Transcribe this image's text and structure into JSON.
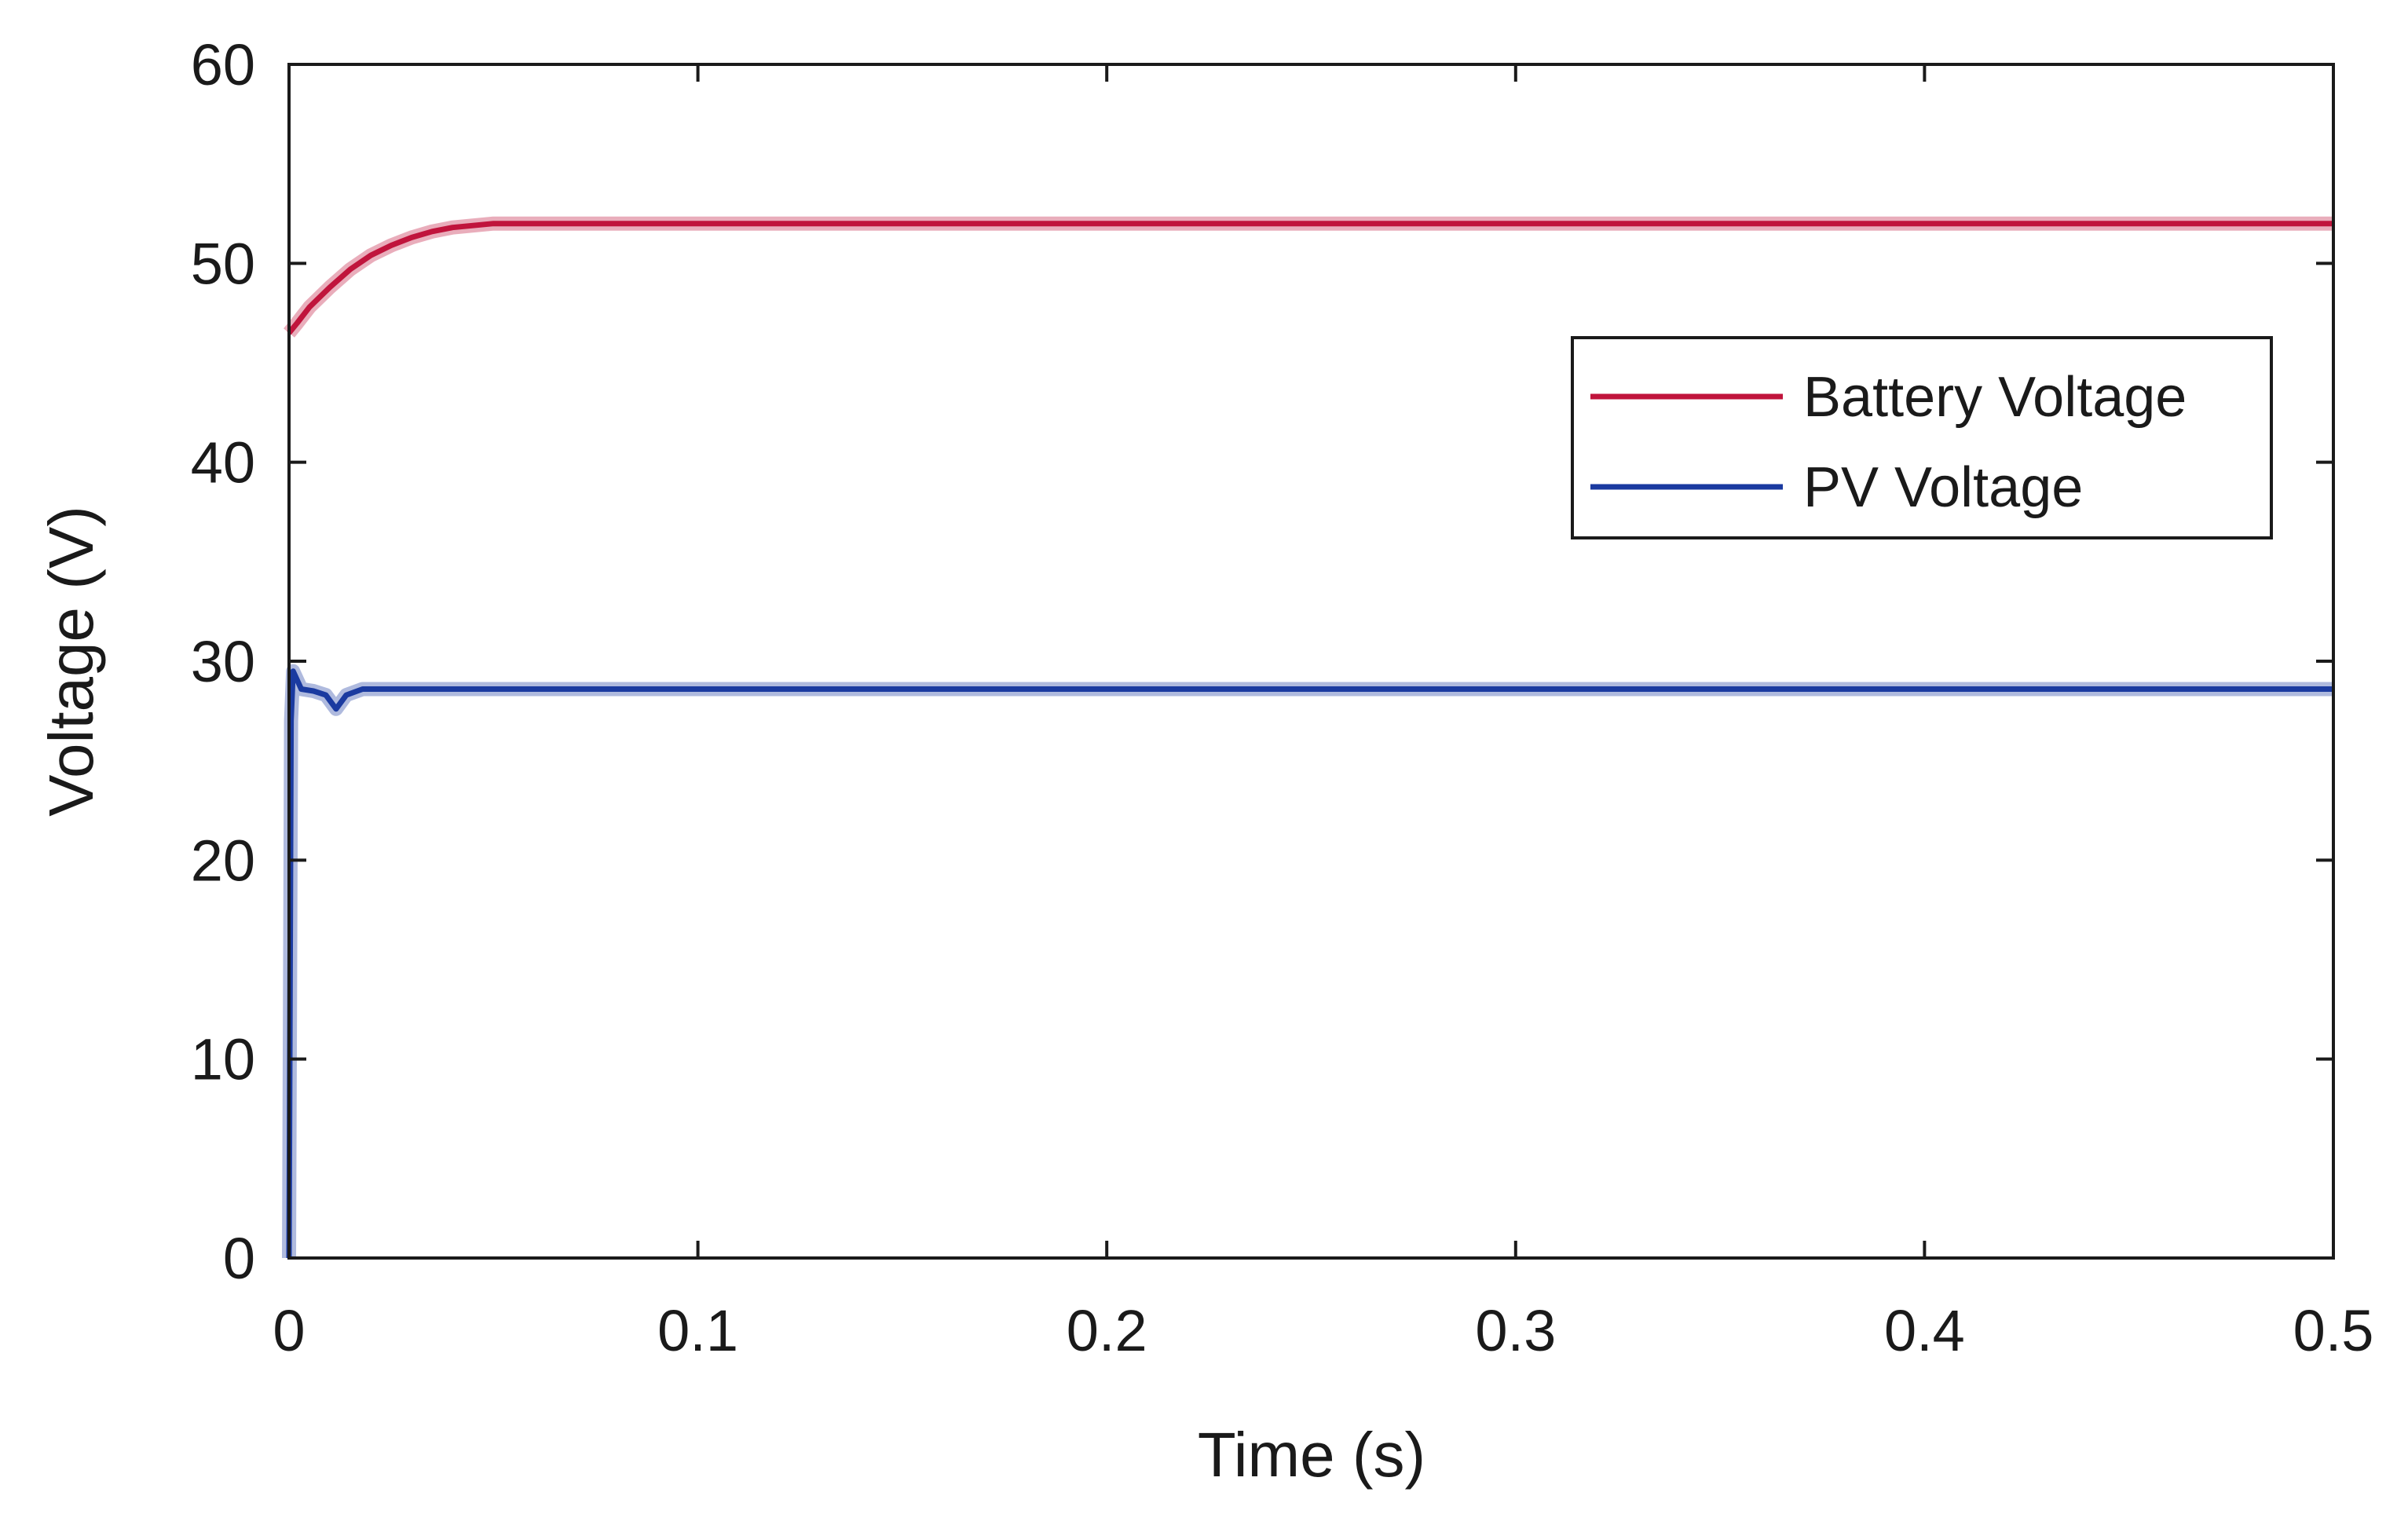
{
  "chart_data": {
    "type": "line",
    "title": "",
    "xlabel": "Time (s)",
    "ylabel": "Voltage (V)",
    "xlim": [
      0,
      0.5
    ],
    "ylim": [
      0,
      60
    ],
    "xticks": [
      0,
      0.1,
      0.2,
      0.3,
      0.4,
      0.5
    ],
    "xtick_labels": [
      "0",
      "0.1",
      "0.2",
      "0.3",
      "0.4",
      "0.5"
    ],
    "yticks": [
      0,
      10,
      20,
      30,
      40,
      50,
      60
    ],
    "ytick_labels": [
      "0",
      "10",
      "20",
      "30",
      "40",
      "50",
      "60"
    ],
    "grid": false,
    "legend_position": "top-right",
    "series": [
      {
        "name": "Battery Voltage",
        "color": "#c0143c",
        "x": [
          0,
          0.002,
          0.005,
          0.01,
          0.015,
          0.02,
          0.025,
          0.03,
          0.035,
          0.04,
          0.045,
          0.05,
          0.1,
          0.2,
          0.3,
          0.4,
          0.5
        ],
        "y": [
          46.5,
          47,
          47.8,
          48.8,
          49.7,
          50.4,
          50.9,
          51.3,
          51.6,
          51.8,
          51.9,
          52,
          52,
          52,
          52,
          52,
          52
        ]
      },
      {
        "name": "PV Voltage",
        "color": "#1a3aa0",
        "x": [
          0,
          0.0005,
          0.001,
          0.003,
          0.006,
          0.009,
          0.0115,
          0.014,
          0.018,
          0.03,
          0.1,
          0.2,
          0.3,
          0.4,
          0.5
        ],
        "y": [
          0,
          27,
          29.5,
          28.6,
          28.5,
          28.3,
          27.6,
          28.3,
          28.6,
          28.6,
          28.6,
          28.6,
          28.6,
          28.6,
          28.6
        ]
      }
    ]
  }
}
